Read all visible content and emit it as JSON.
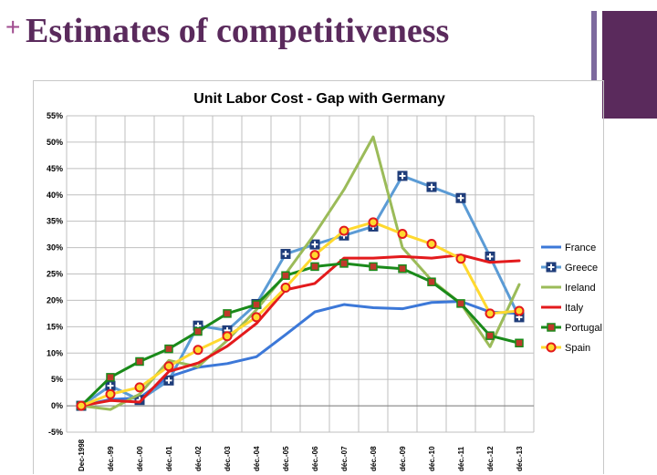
{
  "slide": {
    "title": "Estimates of competitiveness",
    "plus_glyph": "+",
    "accent_color": "#5a2a5c",
    "plus_color": "#a04c8f"
  },
  "chart_data": {
    "type": "line",
    "title": "Unit Labor Cost - Gap with Germany",
    "xlabel": "",
    "ylabel": "",
    "categories": [
      "Dec-1998",
      "déc.-99",
      "déc.-00",
      "déc.-01",
      "déc.-02",
      "déc.-03",
      "déc.-04",
      "déc.-05",
      "déc.-06",
      "déc.-07",
      "déc.-08",
      "déc.-09",
      "déc.-10",
      "déc.-11",
      "déc.-12",
      "déc.-13"
    ],
    "ylim": [
      -5,
      55
    ],
    "yticks": [
      -5,
      0,
      5,
      10,
      15,
      20,
      25,
      30,
      35,
      40,
      45,
      50,
      55
    ],
    "ytick_labels": [
      "-5%",
      "0%",
      "5%",
      "10%",
      "15%",
      "20%",
      "25%",
      "30%",
      "35%",
      "40%",
      "45%",
      "50%",
      "55%"
    ],
    "grid": true,
    "legend_position": "right",
    "series": [
      {
        "name": "France",
        "color": "#3c78d8",
        "marker": "none",
        "values": [
          0,
          1.2,
          1.5,
          5.5,
          7.3,
          8.0,
          9.3,
          13.5,
          17.8,
          19.2,
          18.6,
          18.4,
          19.6,
          19.8,
          17.8,
          17.5
        ]
      },
      {
        "name": "Greece",
        "color": "#5b9bd5",
        "marker": "plus",
        "values": [
          0,
          3.8,
          1.1,
          4.8,
          15.2,
          14.3,
          19.3,
          28.8,
          30.6,
          32.3,
          34.0,
          43.6,
          41.5,
          39.4,
          28.3,
          16.8
        ]
      },
      {
        "name": "Ireland",
        "color": "#9bbb59",
        "marker": "none",
        "values": [
          0,
          -0.7,
          2.2,
          8.6,
          7.4,
          12.4,
          18.2,
          25.0,
          32.6,
          41.0,
          51.0,
          30.0,
          23.8,
          19.4,
          11.2,
          23.0
        ]
      },
      {
        "name": "Italy",
        "color": "#e31a1c",
        "marker": "none",
        "values": [
          0,
          1.0,
          0.7,
          6.5,
          8.1,
          11.3,
          15.6,
          22.0,
          23.2,
          28.0,
          28.0,
          28.3,
          28.0,
          28.6,
          27.2,
          27.5
        ]
      },
      {
        "name": "Portugal",
        "color": "#1a8a1a",
        "marker": "square",
        "values": [
          0,
          5.4,
          8.4,
          10.8,
          14.1,
          17.5,
          19.2,
          24.7,
          26.4,
          27.0,
          26.4,
          26.0,
          23.5,
          19.4,
          13.3,
          11.9
        ]
      },
      {
        "name": "Spain",
        "color": "#ffd92f",
        "marker": "circle",
        "values": [
          0,
          2.2,
          3.5,
          7.5,
          10.6,
          13.2,
          16.8,
          22.4,
          28.6,
          33.2,
          34.8,
          32.6,
          30.7,
          27.9,
          17.5,
          18.0
        ]
      }
    ]
  }
}
